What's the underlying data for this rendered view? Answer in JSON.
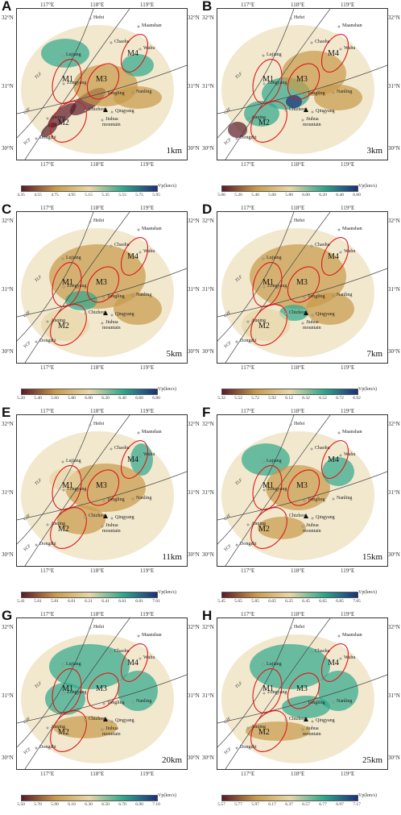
{
  "colors": {
    "low": "#5a1a28",
    "mid_low": "#c89a4a",
    "mid": "#e8d6a6",
    "mid_high": "#2fa88c",
    "high": "#1c2f7a",
    "ellipse": "#e01818",
    "fault": "#444444"
  },
  "axes": {
    "x_ticks": [
      "117°E",
      "118°E",
      "119°E"
    ],
    "y_ticks": [
      "32°N",
      "31°N",
      "30°N"
    ]
  },
  "labels": {
    "cities": [
      "Hefei",
      "Chaohu",
      "Maanshan",
      "Wuhu",
      "Lujiang",
      "Zongyang",
      "Tongling",
      "Nanling",
      "Chizhou",
      "Qingyang",
      "Anqing",
      "Jiuhua",
      "mountain",
      "Dongzhi"
    ],
    "zones": [
      "M1",
      "M2",
      "M3",
      "M4"
    ],
    "faults": [
      "TLF",
      "CJF",
      "YCF"
    ]
  },
  "colorbar_unit": "Vp(km/s)",
  "panels": [
    {
      "letter": "A",
      "depth": "1km",
      "ticks": [
        "4.35",
        "4.55",
        "4.75",
        "4.95",
        "5.15",
        "5.35",
        "5.55",
        "5.75",
        "5.95"
      ]
    },
    {
      "letter": "B",
      "depth": "3km",
      "ticks": [
        "5.00",
        "5.20",
        "5.40",
        "5.60",
        "5.80",
        "6.00",
        "6.20",
        "6.40",
        "6.60"
      ]
    },
    {
      "letter": "C",
      "depth": "5km",
      "ticks": [
        "5.20",
        "5.40",
        "5.60",
        "5.80",
        "6.00",
        "6.20",
        "6.40",
        "6.60",
        "6.80"
      ]
    },
    {
      "letter": "D",
      "depth": "7km",
      "ticks": [
        "5.32",
        "5.52",
        "5.72",
        "5.92",
        "6.12",
        "6.32",
        "6.52",
        "6.72",
        "6.92"
      ]
    },
    {
      "letter": "E",
      "depth": "11km",
      "ticks": [
        "5.41",
        "5.61",
        "5.81",
        "6.01",
        "6.21",
        "6.41",
        "6.61",
        "6.81",
        "7.01"
      ]
    },
    {
      "letter": "F",
      "depth": "15km",
      "ticks": [
        "5.45",
        "5.65",
        "5.85",
        "6.05",
        "6.25",
        "6.45",
        "6.65",
        "6.85",
        "7.05"
      ]
    },
    {
      "letter": "G",
      "depth": "20km",
      "ticks": [
        "5.50",
        "5.70",
        "5.90",
        "6.10",
        "6.30",
        "6.50",
        "6.70",
        "6.90",
        "7.10"
      ]
    },
    {
      "letter": "H",
      "depth": "25km",
      "ticks": [
        "5.57",
        "5.77",
        "5.97",
        "6.17",
        "6.37",
        "6.57",
        "6.77",
        "6.97",
        "7.17"
      ]
    }
  ]
}
